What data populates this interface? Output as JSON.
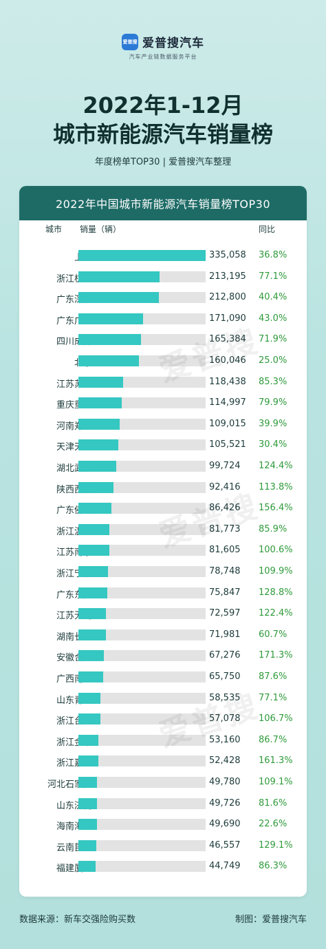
{
  "brand": {
    "logo_text": "爱普搜",
    "name": "爱普搜汽车",
    "tagline": "汽车产业链数据服务平台"
  },
  "title_line1": "2022年1-12月",
  "title_line2": "城市新能源汽车销量榜",
  "subtitle": "年度榜单TOP30 | 爱普搜汽车整理",
  "watermark": "爱普搜",
  "colors": {
    "header_bg": "#1e6b66",
    "bar": "#35c7c1",
    "bar_track": "#e3e3e3",
    "yoy_text": "#2e9a3a"
  },
  "chart_data": {
    "type": "bar",
    "title": "2022年中国城市新能源汽车销量榜TOP30",
    "headers": {
      "city": "城市",
      "sales": "销量（辆）",
      "yoy": "同比"
    },
    "categories": [
      "上海",
      "浙江杭州",
      "广东深圳",
      "广东广州",
      "四川成都",
      "北京",
      "江苏苏州",
      "重庆重庆",
      "河南郑州",
      "天津天津",
      "湖北武汉",
      "陕西西安",
      "广东佛山",
      "浙江温州",
      "江苏南京",
      "浙江宁波",
      "广东东莞",
      "江苏无锡",
      "湖南长沙",
      "安徽合肥",
      "广西南宁",
      "山东青岛",
      "浙江台州",
      "浙江金华",
      "浙江嘉兴",
      "河北石家庄",
      "山东济南",
      "海南海口",
      "云南昆明",
      "福建厦门"
    ],
    "values": [
      335058,
      213195,
      212800,
      171090,
      165384,
      160046,
      118438,
      114997,
      109015,
      105521,
      99724,
      92416,
      86426,
      81773,
      81605,
      78748,
      75847,
      72597,
      71981,
      67276,
      65750,
      58535,
      57078,
      53160,
      52428,
      49780,
      49726,
      49690,
      46557,
      44749
    ],
    "value_labels": [
      "335,058",
      "213,195",
      "212,800",
      "171,090",
      "165,384",
      "160,046",
      "118,438",
      "114,997",
      "109,015",
      "105,521",
      "99,724",
      "92,416",
      "86,426",
      "81,773",
      "81,605",
      "78,748",
      "75,847",
      "72,597",
      "71,981",
      "67,276",
      "65,750",
      "58,535",
      "57,078",
      "53,160",
      "52,428",
      "49,780",
      "49,726",
      "49,690",
      "46,557",
      "44,749"
    ],
    "yoy": [
      "36.8%",
      "77.1%",
      "40.4%",
      "43.0%",
      "71.9%",
      "25.0%",
      "85.3%",
      "79.9%",
      "39.9%",
      "30.4%",
      "124.4%",
      "113.8%",
      "156.4%",
      "85.9%",
      "100.6%",
      "109.9%",
      "128.8%",
      "122.4%",
      "60.7%",
      "171.3%",
      "87.6%",
      "77.1%",
      "106.7%",
      "86.7%",
      "161.3%",
      "109.1%",
      "81.6%",
      "22.6%",
      "129.1%",
      "86.3%"
    ],
    "xlim": [
      0,
      335058
    ]
  },
  "footer": {
    "source": "数据来源：新车交强险购买数",
    "producer": "制图：爱普搜汽车"
  }
}
